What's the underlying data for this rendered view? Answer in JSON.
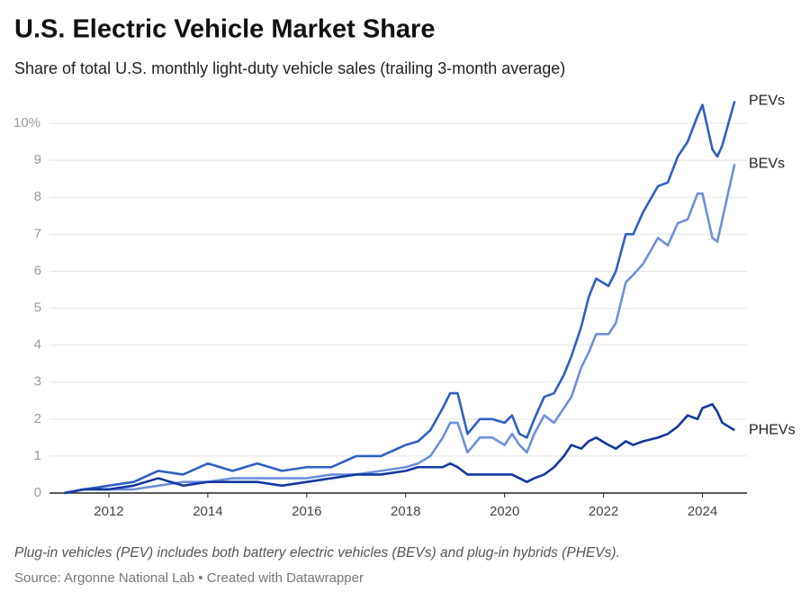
{
  "chart_data": {
    "type": "line",
    "title": "U.S. Electric Vehicle Market Share",
    "subtitle": "Share of total U.S. monthly light-duty vehicle sales (trailing 3-month average)",
    "note": "Plug-in vehicles (PEV) includes both battery electric vehicles (BEVs) and plug-in hybrids (PHEVs).",
    "source": "Source: Argonne National Lab • Created with Datawrapper",
    "x": [
      2011.1,
      2011.5,
      2012,
      2012.5,
      2013,
      2013.5,
      2014,
      2014.5,
      2015,
      2015.5,
      2016,
      2016.5,
      2017,
      2017.5,
      2018,
      2018.25,
      2018.5,
      2018.75,
      2018.9,
      2019.05,
      2019.25,
      2019.5,
      2019.75,
      2020,
      2020.15,
      2020.3,
      2020.45,
      2020.6,
      2020.8,
      2021,
      2021.2,
      2021.35,
      2021.55,
      2021.7,
      2021.85,
      2022.1,
      2022.25,
      2022.45,
      2022.6,
      2022.8,
      2023.1,
      2023.3,
      2023.5,
      2023.7,
      2023.9,
      2024,
      2024.2,
      2024.3,
      2024.4,
      2024.65
    ],
    "series": [
      {
        "name": "PEVs",
        "color": "#2f5fc4",
        "values": [
          0,
          0.1,
          0.2,
          0.3,
          0.6,
          0.5,
          0.8,
          0.6,
          0.8,
          0.6,
          0.7,
          0.7,
          1.0,
          1.0,
          1.3,
          1.4,
          1.7,
          2.3,
          2.7,
          2.7,
          1.6,
          2.0,
          2.0,
          1.9,
          2.1,
          1.6,
          1.5,
          2.0,
          2.6,
          2.7,
          3.2,
          3.7,
          4.5,
          5.3,
          5.8,
          5.6,
          6.0,
          7.0,
          7.0,
          7.6,
          8.3,
          8.4,
          9.1,
          9.5,
          10.2,
          10.5,
          9.3,
          9.1,
          9.4,
          10.6
        ]
      },
      {
        "name": "BEVs",
        "color": "#6e8fdb",
        "values": [
          0,
          0.1,
          0.1,
          0.1,
          0.2,
          0.3,
          0.3,
          0.4,
          0.4,
          0.4,
          0.4,
          0.5,
          0.5,
          0.6,
          0.7,
          0.8,
          1.0,
          1.5,
          1.9,
          1.9,
          1.1,
          1.5,
          1.5,
          1.3,
          1.6,
          1.3,
          1.1,
          1.6,
          2.1,
          1.9,
          2.3,
          2.6,
          3.4,
          3.8,
          4.3,
          4.3,
          4.6,
          5.7,
          5.9,
          6.2,
          6.9,
          6.7,
          7.3,
          7.4,
          8.1,
          8.1,
          6.9,
          6.8,
          7.4,
          8.9
        ]
      },
      {
        "name": "PHEVs",
        "color": "#1238a0",
        "values": [
          0,
          0.1,
          0.1,
          0.2,
          0.4,
          0.2,
          0.3,
          0.3,
          0.3,
          0.2,
          0.3,
          0.4,
          0.5,
          0.5,
          0.6,
          0.7,
          0.7,
          0.7,
          0.8,
          0.7,
          0.5,
          0.5,
          0.5,
          0.5,
          0.5,
          0.4,
          0.3,
          0.4,
          0.5,
          0.7,
          1.0,
          1.3,
          1.2,
          1.4,
          1.5,
          1.3,
          1.2,
          1.4,
          1.3,
          1.4,
          1.5,
          1.6,
          1.8,
          2.1,
          2.0,
          2.3,
          2.4,
          2.2,
          1.9,
          1.7
        ]
      }
    ],
    "xlim": [
      2010.8,
      2024.9
    ],
    "xticks": [
      2012,
      2014,
      2016,
      2018,
      2020,
      2022,
      2024
    ],
    "ylim": [
      0,
      11
    ],
    "yticks": [
      0,
      1,
      2,
      3,
      4,
      5,
      6,
      7,
      8,
      9,
      {
        "value": 10,
        "label": "10%"
      }
    ],
    "grid": true
  }
}
